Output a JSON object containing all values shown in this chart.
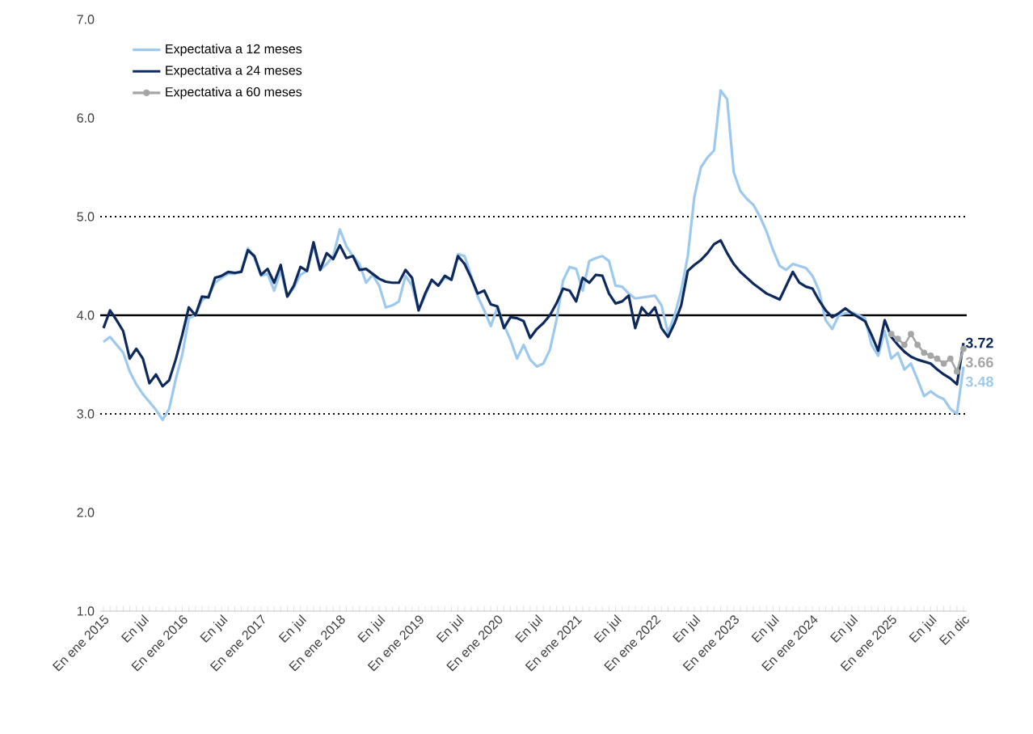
{
  "chart_data": {
    "type": "line",
    "categories": [
      "En ene 2015",
      null,
      null,
      null,
      null,
      null,
      "En jul",
      null,
      null,
      null,
      null,
      null,
      "En ene 2016",
      null,
      null,
      null,
      null,
      null,
      "En jul",
      null,
      null,
      null,
      null,
      null,
      "En ene 2017",
      null,
      null,
      null,
      null,
      null,
      "En jul",
      null,
      null,
      null,
      null,
      null,
      "En ene 2018",
      null,
      null,
      null,
      null,
      null,
      "En jul",
      null,
      null,
      null,
      null,
      null,
      "En ene 2019",
      null,
      null,
      null,
      null,
      null,
      "En jul",
      null,
      null,
      null,
      null,
      null,
      "En ene 2020",
      null,
      null,
      null,
      null,
      null,
      "En jul",
      null,
      null,
      null,
      null,
      null,
      "En ene 2021",
      null,
      null,
      null,
      null,
      null,
      "En jul",
      null,
      null,
      null,
      null,
      null,
      "En ene 2022",
      null,
      null,
      null,
      null,
      null,
      "En jul",
      null,
      null,
      null,
      null,
      null,
      "En ene 2023",
      null,
      null,
      null,
      null,
      null,
      "En jul",
      null,
      null,
      null,
      null,
      null,
      "En ene 2024",
      null,
      null,
      null,
      null,
      null,
      "En jul",
      null,
      null,
      null,
      null,
      null,
      "En ene 2025",
      null,
      null,
      null,
      null,
      null,
      "En jul",
      null,
      null,
      null,
      null,
      "En dic"
    ],
    "series": [
      {
        "name": "Expectativa a 12 meses",
        "color": "#9dc9ef",
        "values": [
          3.73,
          3.78,
          3.7,
          3.62,
          3.43,
          3.3,
          3.2,
          3.12,
          3.04,
          2.94,
          3.05,
          3.35,
          3.6,
          3.97,
          4.0,
          4.15,
          4.2,
          4.33,
          4.38,
          4.42,
          4.42,
          4.45,
          4.68,
          4.58,
          4.4,
          4.42,
          4.25,
          4.45,
          4.19,
          4.28,
          4.41,
          4.45,
          4.7,
          4.46,
          4.52,
          4.6,
          4.87,
          4.7,
          4.6,
          4.52,
          4.33,
          4.41,
          4.3,
          4.08,
          4.1,
          4.14,
          4.4,
          4.3,
          4.05,
          4.2,
          4.35,
          4.3,
          4.38,
          4.36,
          4.62,
          4.6,
          4.4,
          4.19,
          4.05,
          3.89,
          4.08,
          3.9,
          3.75,
          3.56,
          3.7,
          3.55,
          3.48,
          3.51,
          3.65,
          3.95,
          4.35,
          4.49,
          4.47,
          4.25,
          4.55,
          4.58,
          4.6,
          4.55,
          4.3,
          4.29,
          4.22,
          4.17,
          4.18,
          4.19,
          4.2,
          4.1,
          3.82,
          4.0,
          4.25,
          4.6,
          5.2,
          5.5,
          5.6,
          5.67,
          6.28,
          6.19,
          5.45,
          5.26,
          5.18,
          5.12,
          5.0,
          4.85,
          4.66,
          4.5,
          4.46,
          4.52,
          4.5,
          4.48,
          4.4,
          4.25,
          3.95,
          3.86,
          4.0,
          4.02,
          4.03,
          4.0,
          3.97,
          3.7,
          3.59,
          3.84,
          3.56,
          3.62,
          3.45,
          3.51,
          3.35,
          3.18,
          3.23,
          3.18,
          3.15,
          3.05,
          3.0,
          3.48
        ],
        "value_labels": [
          null,
          null,
          null,
          null,
          null,
          null,
          null,
          null,
          null,
          null,
          null,
          null,
          null,
          null,
          null,
          null,
          null,
          null,
          null,
          null,
          null,
          null,
          null,
          null,
          null,
          null,
          null,
          null,
          null,
          null,
          null,
          null,
          null,
          null,
          null,
          null,
          null,
          null,
          null,
          null,
          null,
          null,
          null,
          null,
          null,
          null,
          null,
          null,
          null,
          null,
          null,
          null,
          null,
          null,
          null,
          null,
          null,
          null,
          null,
          null,
          null,
          null,
          null,
          null,
          null,
          null,
          null,
          null,
          null,
          null,
          null,
          null,
          null,
          null,
          null,
          null,
          null,
          null,
          null,
          null,
          null,
          null,
          null,
          null,
          null,
          null,
          null,
          null,
          null,
          null,
          null,
          null,
          null,
          null,
          null,
          null,
          null,
          null,
          null,
          null,
          null,
          null,
          null,
          null,
          null,
          null,
          null,
          null,
          null,
          null,
          null,
          null,
          null,
          null,
          null,
          null,
          null,
          null,
          null,
          null,
          null,
          null,
          null,
          null,
          null,
          null,
          null,
          null,
          null,
          null,
          null,
          "3.48"
        ]
      },
      {
        "name": "Expectativa a 24 meses",
        "color": "#0e2a5c",
        "values": [
          3.87,
          4.05,
          3.95,
          3.84,
          3.56,
          3.66,
          3.56,
          3.31,
          3.4,
          3.28,
          3.34,
          3.55,
          3.8,
          4.08,
          4.0,
          4.19,
          4.18,
          4.38,
          4.4,
          4.44,
          4.43,
          4.44,
          4.66,
          4.6,
          4.41,
          4.47,
          4.33,
          4.51,
          4.19,
          4.3,
          4.49,
          4.45,
          4.74,
          4.46,
          4.63,
          4.57,
          4.71,
          4.58,
          4.6,
          4.46,
          4.47,
          4.42,
          4.37,
          4.34,
          4.33,
          4.33,
          4.46,
          4.38,
          4.05,
          4.22,
          4.36,
          4.3,
          4.4,
          4.36,
          4.6,
          4.52,
          4.38,
          4.22,
          4.25,
          4.11,
          4.09,
          3.87,
          3.98,
          3.97,
          3.94,
          3.77,
          3.86,
          3.92,
          4.0,
          4.12,
          4.27,
          4.25,
          4.14,
          4.38,
          4.33,
          4.41,
          4.4,
          4.22,
          4.12,
          4.14,
          4.2,
          3.87,
          4.08,
          4.0,
          4.08,
          3.87,
          3.78,
          3.92,
          4.1,
          4.45,
          4.51,
          4.56,
          4.63,
          4.72,
          4.76,
          4.63,
          4.52,
          4.44,
          4.38,
          4.32,
          4.27,
          4.22,
          4.19,
          4.16,
          4.3,
          4.44,
          4.33,
          4.29,
          4.27,
          4.15,
          4.05,
          3.98,
          4.02,
          4.07,
          4.02,
          3.98,
          3.94,
          3.8,
          3.64,
          3.95,
          3.78,
          3.7,
          3.63,
          3.58,
          3.55,
          3.53,
          3.51,
          3.45,
          3.4,
          3.36,
          3.3,
          3.72
        ],
        "value_labels": [
          null,
          null,
          null,
          null,
          null,
          null,
          null,
          null,
          null,
          null,
          null,
          null,
          null,
          null,
          null,
          null,
          null,
          null,
          null,
          null,
          null,
          null,
          null,
          null,
          null,
          null,
          null,
          null,
          null,
          null,
          null,
          null,
          null,
          null,
          null,
          null,
          null,
          null,
          null,
          null,
          null,
          null,
          null,
          null,
          null,
          null,
          null,
          null,
          null,
          null,
          null,
          null,
          null,
          null,
          null,
          null,
          null,
          null,
          null,
          null,
          null,
          null,
          null,
          null,
          null,
          null,
          null,
          null,
          null,
          null,
          null,
          null,
          null,
          null,
          null,
          null,
          null,
          null,
          null,
          null,
          null,
          null,
          null,
          null,
          null,
          null,
          null,
          null,
          null,
          null,
          null,
          null,
          null,
          null,
          null,
          null,
          null,
          null,
          null,
          null,
          null,
          null,
          null,
          null,
          null,
          null,
          null,
          null,
          null,
          null,
          null,
          null,
          null,
          null,
          null,
          null,
          null,
          null,
          null,
          null,
          null,
          null,
          null,
          null,
          null,
          null,
          null,
          null,
          null,
          null,
          null,
          "3.72"
        ]
      },
      {
        "name": "Expectativa a 60 meses",
        "color": "#a6a6a6",
        "marker": "circle",
        "values": [
          null,
          null,
          null,
          null,
          null,
          null,
          null,
          null,
          null,
          null,
          null,
          null,
          null,
          null,
          null,
          null,
          null,
          null,
          null,
          null,
          null,
          null,
          null,
          null,
          null,
          null,
          null,
          null,
          null,
          null,
          null,
          null,
          null,
          null,
          null,
          null,
          null,
          null,
          null,
          null,
          null,
          null,
          null,
          null,
          null,
          null,
          null,
          null,
          null,
          null,
          null,
          null,
          null,
          null,
          null,
          null,
          null,
          null,
          null,
          null,
          null,
          null,
          null,
          null,
          null,
          null,
          null,
          null,
          null,
          null,
          null,
          null,
          null,
          null,
          null,
          null,
          null,
          null,
          null,
          null,
          null,
          null,
          null,
          null,
          null,
          null,
          null,
          null,
          null,
          null,
          null,
          null,
          null,
          null,
          null,
          null,
          null,
          null,
          null,
          null,
          null,
          null,
          null,
          null,
          null,
          null,
          null,
          null,
          null,
          null,
          null,
          null,
          null,
          null,
          null,
          null,
          null,
          null,
          null,
          null,
          3.81,
          3.76,
          3.7,
          3.81,
          3.7,
          3.62,
          3.59,
          3.56,
          3.51,
          3.56,
          3.43,
          3.66
        ],
        "value_labels": [
          null,
          null,
          null,
          null,
          null,
          null,
          null,
          null,
          null,
          null,
          null,
          null,
          null,
          null,
          null,
          null,
          null,
          null,
          null,
          null,
          null,
          null,
          null,
          null,
          null,
          null,
          null,
          null,
          null,
          null,
          null,
          null,
          null,
          null,
          null,
          null,
          null,
          null,
          null,
          null,
          null,
          null,
          null,
          null,
          null,
          null,
          null,
          null,
          null,
          null,
          null,
          null,
          null,
          null,
          null,
          null,
          null,
          null,
          null,
          null,
          null,
          null,
          null,
          null,
          null,
          null,
          null,
          null,
          null,
          null,
          null,
          null,
          null,
          null,
          null,
          null,
          null,
          null,
          null,
          null,
          null,
          null,
          null,
          null,
          null,
          null,
          null,
          null,
          null,
          null,
          null,
          null,
          null,
          null,
          null,
          null,
          null,
          null,
          null,
          null,
          null,
          null,
          null,
          null,
          null,
          null,
          null,
          null,
          null,
          null,
          null,
          null,
          null,
          null,
          null,
          null,
          null,
          null,
          null,
          null,
          null,
          null,
          null,
          null,
          null,
          null,
          null,
          null,
          null,
          null,
          null,
          "3.66"
        ]
      }
    ],
    "ylim": [
      1,
      7
    ],
    "yticks": [
      {
        "value": 1,
        "label": "1.0"
      },
      {
        "value": 2,
        "label": "2.0"
      },
      {
        "value": 3,
        "label": "3.0"
      },
      {
        "value": 4,
        "label": "4.0"
      },
      {
        "value": 5,
        "label": "5.0"
      },
      {
        "value": 6,
        "label": "6.0"
      },
      {
        "value": 7,
        "label": "7.0"
      }
    ],
    "ref_lines": [
      {
        "axis": "y",
        "value": 5,
        "color": "#000000",
        "line_style": "dotted"
      },
      {
        "axis": "y",
        "value": 4,
        "color": "#000000",
        "line_style": "solid"
      },
      {
        "axis": "y",
        "value": 3,
        "color": "#000000",
        "line_style": "dotted"
      }
    ],
    "legend": "top left",
    "grid": false
  }
}
